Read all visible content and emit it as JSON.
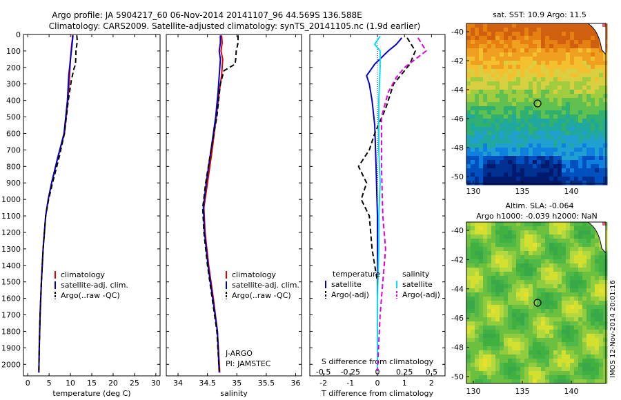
{
  "header": {
    "line1": "Argo profile: JA 5904217_60 06-Nov-2014 20141107_96 44.569S 136.588E",
    "line2": "Climatology: CARS2009. Satellite-adjusted climatology: synTS_20141105.nc (1.9d earlier)"
  },
  "colors": {
    "climatology": "#e00000",
    "satellite": "#0000cc",
    "argo": "#000000",
    "satellite_salinity": "#00e0f0",
    "argo_salinity": "#e000e0"
  },
  "chart_data": [
    {
      "id": "temperature",
      "type": "line",
      "xlabel": "temperature (deg C)",
      "ylabel": "",
      "xlim": [
        -1,
        31
      ],
      "ylim": [
        2070,
        0
      ],
      "xticks": [
        0,
        5,
        10,
        15,
        20,
        25,
        30
      ],
      "yticks": [
        0,
        100,
        200,
        300,
        400,
        500,
        600,
        700,
        800,
        900,
        1000,
        1100,
        1200,
        1300,
        1400,
        1500,
        1600,
        1700,
        1800,
        1900,
        2000
      ],
      "legend": [
        "climatology",
        "satellite-adj. clim.",
        "Argo(..raw -QC)"
      ],
      "series": [
        {
          "name": "climatology",
          "style": "solid",
          "color_key": "climatology",
          "points": [
            [
              10.4,
              5
            ],
            [
              10.5,
              20
            ],
            [
              10.3,
              60
            ],
            [
              10,
              150
            ],
            [
              9.8,
              250
            ],
            [
              9.4,
              400
            ],
            [
              8.6,
              600
            ],
            [
              7,
              750
            ],
            [
              5.6,
              900
            ],
            [
              4.8,
              1000
            ],
            [
              4.2,
              1100
            ],
            [
              3.6,
              1300
            ],
            [
              3.2,
              1500
            ],
            [
              2.9,
              1700
            ],
            [
              2.7,
              1900
            ],
            [
              2.6,
              2050
            ]
          ]
        },
        {
          "name": "satellite-adj. clim.",
          "style": "solid",
          "color_key": "satellite",
          "points": [
            [
              10.6,
              5
            ],
            [
              10.4,
              60
            ],
            [
              10,
              150
            ],
            [
              9.6,
              250
            ],
            [
              9.3,
              400
            ],
            [
              8.5,
              600
            ],
            [
              7,
              750
            ],
            [
              5.6,
              900
            ],
            [
              4.8,
              1000
            ],
            [
              4.2,
              1100
            ],
            [
              3.6,
              1300
            ],
            [
              3.2,
              1500
            ],
            [
              2.9,
              1700
            ],
            [
              2.7,
              1900
            ],
            [
              2.6,
              2050
            ]
          ]
        },
        {
          "name": "Argo(..raw -QC)",
          "style": "dashed",
          "color_key": "argo",
          "points": [
            [
              11.5,
              5
            ],
            [
              11.6,
              40
            ],
            [
              11.3,
              100
            ],
            [
              11.2,
              180
            ],
            [
              10.8,
              210
            ],
            [
              10.2,
              280
            ],
            [
              9.5,
              400
            ],
            [
              8.6,
              600
            ],
            [
              7.3,
              750
            ],
            [
              5.8,
              900
            ],
            [
              4.9,
              1000
            ],
            [
              4.2,
              1100
            ],
            [
              3.6,
              1300
            ],
            [
              3.2,
              1500
            ],
            [
              2.9,
              1700
            ],
            [
              2.7,
              1900
            ],
            [
              2.6,
              2040
            ]
          ]
        }
      ]
    },
    {
      "id": "salinity",
      "type": "line",
      "xlabel": "salinity",
      "ylabel": "",
      "xlim": [
        33.8,
        36.1
      ],
      "ylim": [
        2070,
        0
      ],
      "xticks": [
        34,
        34.5,
        35,
        35.5,
        36
      ],
      "legend": [
        "climatology",
        "satellite-adj. clim.",
        "Argo(..raw -QC)"
      ],
      "annotations": [
        "J-ARGO",
        "PI: JAMSTEC"
      ],
      "series": [
        {
          "name": "climatology",
          "style": "solid",
          "color_key": "climatology",
          "points": [
            [
              34.74,
              5
            ],
            [
              34.75,
              50
            ],
            [
              34.73,
              100
            ],
            [
              34.76,
              150
            ],
            [
              34.74,
              250
            ],
            [
              34.7,
              350
            ],
            [
              34.65,
              500
            ],
            [
              34.58,
              700
            ],
            [
              34.5,
              900
            ],
            [
              34.44,
              1050
            ],
            [
              34.46,
              1200
            ],
            [
              34.52,
              1400
            ],
            [
              34.6,
              1600
            ],
            [
              34.67,
              1800
            ],
            [
              34.71,
              2050
            ]
          ]
        },
        {
          "name": "satellite-adj. clim.",
          "style": "solid",
          "color_key": "satellite",
          "points": [
            [
              34.72,
              5
            ],
            [
              34.72,
              50
            ],
            [
              34.7,
              100
            ],
            [
              34.72,
              150
            ],
            [
              34.7,
              250
            ],
            [
              34.68,
              350
            ],
            [
              34.64,
              500
            ],
            [
              34.56,
              700
            ],
            [
              34.48,
              900
            ],
            [
              34.43,
              1050
            ],
            [
              34.45,
              1200
            ],
            [
              34.51,
              1400
            ],
            [
              34.59,
              1600
            ],
            [
              34.67,
              1800
            ],
            [
              34.7,
              2050
            ]
          ]
        },
        {
          "name": "Argo(..raw -QC)",
          "style": "dashed",
          "color_key": "argo",
          "points": [
            [
              35.02,
              5
            ],
            [
              35.02,
              50
            ],
            [
              34.99,
              100
            ],
            [
              34.98,
              150
            ],
            [
              34.97,
              180
            ],
            [
              34.78,
              220
            ],
            [
              34.72,
              300
            ],
            [
              34.66,
              500
            ],
            [
              34.56,
              700
            ],
            [
              34.47,
              900
            ],
            [
              34.42,
              1050
            ],
            [
              34.44,
              1200
            ],
            [
              34.5,
              1400
            ],
            [
              34.58,
              1600
            ],
            [
              34.66,
              1800
            ],
            [
              34.7,
              2040
            ]
          ]
        }
      ]
    },
    {
      "id": "difference",
      "type": "line",
      "xlabel": "T difference from climatology",
      "ylabel": "",
      "top_label": "S difference from climatology",
      "xlim": [
        -2.5,
        2.5
      ],
      "ylim": [
        2070,
        0
      ],
      "xticks": [
        -2,
        -1,
        0,
        1,
        2
      ],
      "s_ticks": [
        "-0.5",
        "-0.25",
        "0",
        "0.25",
        "0.5"
      ],
      "legend_title_left": "temperature",
      "legend_title_right": "salinity",
      "legend": [
        "satellite",
        "Argo(-adj)",
        "satellite",
        "Argo(-adj)"
      ],
      "series": [
        {
          "name": "satellite",
          "style": "solid",
          "color_key": "satellite",
          "points": [
            [
              0.9,
              20
            ],
            [
              0.7,
              60
            ],
            [
              0.4,
              100
            ],
            [
              -0.1,
              180
            ],
            [
              -0.4,
              250
            ],
            [
              -0.3,
              300
            ],
            [
              -0.2,
              400
            ],
            [
              -0.1,
              550
            ],
            [
              -0.05,
              800
            ],
            [
              0,
              1100
            ],
            [
              0,
              1500
            ],
            [
              0,
              1800
            ],
            [
              0,
              2040
            ]
          ]
        },
        {
          "name": "Argo(-adj)",
          "style": "dashed",
          "color_key": "argo",
          "points": [
            [
              1.1,
              20
            ],
            [
              1.4,
              100
            ],
            [
              1.2,
              180
            ],
            [
              1,
              220
            ],
            [
              0.6,
              300
            ],
            [
              0.3,
              450
            ],
            [
              -0.1,
              600
            ],
            [
              -0.3,
              700
            ],
            [
              -0.7,
              800
            ],
            [
              -0.4,
              900
            ],
            [
              -0.6,
              1000
            ],
            [
              -0.3,
              1100
            ],
            [
              -0.2,
              1300
            ],
            [
              0,
              1500
            ],
            [
              0,
              1800
            ],
            [
              0,
              2040
            ]
          ]
        },
        {
          "name": "satellite (salinity)",
          "style": "solid",
          "color_key": "satellite_salinity",
          "points": [
            [
              0.1,
              10
            ],
            [
              -0.1,
              60
            ],
            [
              0.1,
              100
            ],
            [
              0.1,
              200
            ],
            [
              0.05,
              400
            ],
            [
              0.05,
              700
            ],
            [
              0.1,
              900
            ],
            [
              0.05,
              1100
            ],
            [
              0.05,
              1300
            ],
            [
              0,
              1600
            ],
            [
              0,
              2040
            ]
          ]
        },
        {
          "name": "Argo(-adj) (salinity)",
          "style": "dashed",
          "color_key": "argo_salinity",
          "points": [
            [
              1.5,
              20
            ],
            [
              1.8,
              100
            ],
            [
              1.4,
              150
            ],
            [
              1,
              200
            ],
            [
              0.7,
              260
            ],
            [
              0.4,
              350
            ],
            [
              0.15,
              500
            ],
            [
              0.15,
              800
            ],
            [
              0.2,
              1100
            ],
            [
              0.3,
              1300
            ],
            [
              0.2,
              1500
            ],
            [
              0.1,
              1700
            ],
            [
              0,
              2040
            ]
          ]
        }
      ]
    }
  ],
  "maps": [
    {
      "id": "sst",
      "title": "sat. SST: 10.9 Argo: 11.5",
      "subtitle": "",
      "xticks": [
        "130",
        "135",
        "140"
      ],
      "yticks": [
        "-40",
        "-42",
        "-44",
        "-46",
        "-48",
        "-50"
      ],
      "palette": [
        "#d06010",
        "#e68010",
        "#f0a020",
        "#f4c030",
        "#d8d040",
        "#a0cc40",
        "#60c050",
        "#30b070",
        "#20a8a0",
        "#20a0d0",
        "#1080e0",
        "#0050c0",
        "#003090",
        "#001a70"
      ]
    },
    {
      "id": "sla",
      "title": "Altim. SLA: -0.064",
      "subtitle": "Argo h1000: -0.039 h2000: NaN",
      "xticks": [
        "130",
        "135",
        "140"
      ],
      "yticks": [
        "-40",
        "-42",
        "-44",
        "-46",
        "-48",
        "-50"
      ],
      "palette": [
        "#38a848",
        "#40b040",
        "#50b848",
        "#6cc040",
        "#90cc40",
        "#b4d840",
        "#d4e030",
        "#e8e030",
        "#30a0a0",
        "#2888c0"
      ]
    }
  ],
  "watermark": "IMOS 12-Nov-2014 20:01:16"
}
